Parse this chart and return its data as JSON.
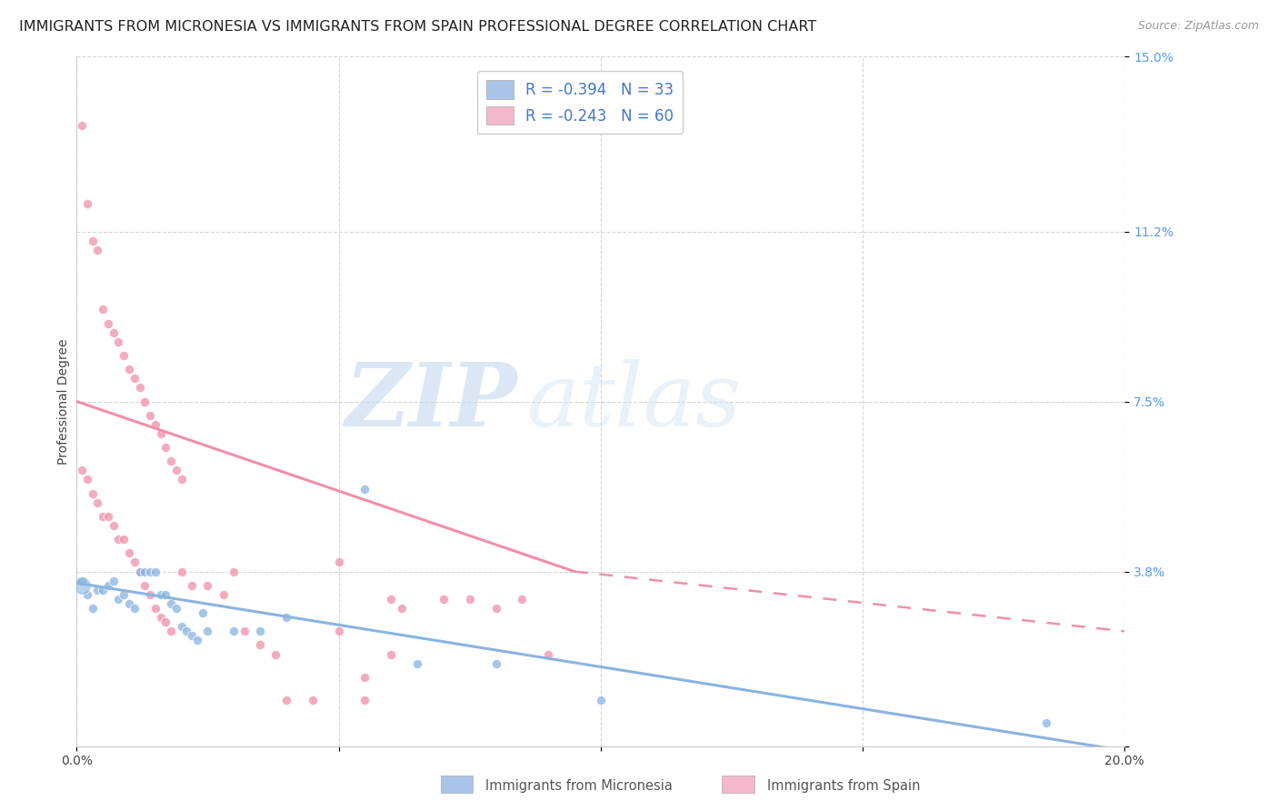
{
  "title": "IMMIGRANTS FROM MICRONESIA VS IMMIGRANTS FROM SPAIN PROFESSIONAL DEGREE CORRELATION CHART",
  "source": "Source: ZipAtlas.com",
  "ylabel": "Professional Degree",
  "watermark_zip": "ZIP",
  "watermark_atlas": "atlas",
  "legend_entries": [
    {
      "label": "R = -0.394   N = 33",
      "color": "#aac4e8"
    },
    {
      "label": "R = -0.243   N = 60",
      "color": "#f4b8cc"
    }
  ],
  "micronesia_color": "#8ab4e0",
  "spain_color": "#f090a8",
  "micronesia_scatter": [
    [
      0.001,
      0.036
    ],
    [
      0.002,
      0.033
    ],
    [
      0.003,
      0.03
    ],
    [
      0.004,
      0.034
    ],
    [
      0.005,
      0.034
    ],
    [
      0.006,
      0.035
    ],
    [
      0.007,
      0.036
    ],
    [
      0.008,
      0.032
    ],
    [
      0.009,
      0.033
    ],
    [
      0.01,
      0.031
    ],
    [
      0.011,
      0.03
    ],
    [
      0.012,
      0.038
    ],
    [
      0.013,
      0.038
    ],
    [
      0.014,
      0.038
    ],
    [
      0.015,
      0.038
    ],
    [
      0.016,
      0.033
    ],
    [
      0.017,
      0.033
    ],
    [
      0.018,
      0.031
    ],
    [
      0.019,
      0.03
    ],
    [
      0.02,
      0.026
    ],
    [
      0.021,
      0.025
    ],
    [
      0.022,
      0.024
    ],
    [
      0.023,
      0.023
    ],
    [
      0.024,
      0.029
    ],
    [
      0.025,
      0.025
    ],
    [
      0.03,
      0.025
    ],
    [
      0.035,
      0.025
    ],
    [
      0.04,
      0.028
    ],
    [
      0.055,
      0.056
    ],
    [
      0.065,
      0.018
    ],
    [
      0.08,
      0.018
    ],
    [
      0.1,
      0.01
    ],
    [
      0.185,
      0.005
    ]
  ],
  "spain_scatter": [
    [
      0.001,
      0.135
    ],
    [
      0.002,
      0.118
    ],
    [
      0.003,
      0.11
    ],
    [
      0.004,
      0.108
    ],
    [
      0.005,
      0.095
    ],
    [
      0.006,
      0.092
    ],
    [
      0.007,
      0.09
    ],
    [
      0.008,
      0.088
    ],
    [
      0.009,
      0.085
    ],
    [
      0.01,
      0.082
    ],
    [
      0.011,
      0.08
    ],
    [
      0.012,
      0.078
    ],
    [
      0.013,
      0.075
    ],
    [
      0.014,
      0.072
    ],
    [
      0.015,
      0.07
    ],
    [
      0.016,
      0.068
    ],
    [
      0.017,
      0.065
    ],
    [
      0.018,
      0.062
    ],
    [
      0.019,
      0.06
    ],
    [
      0.02,
      0.058
    ],
    [
      0.001,
      0.06
    ],
    [
      0.002,
      0.058
    ],
    [
      0.003,
      0.055
    ],
    [
      0.004,
      0.053
    ],
    [
      0.005,
      0.05
    ],
    [
      0.006,
      0.05
    ],
    [
      0.007,
      0.048
    ],
    [
      0.008,
      0.045
    ],
    [
      0.009,
      0.045
    ],
    [
      0.01,
      0.042
    ],
    [
      0.011,
      0.04
    ],
    [
      0.012,
      0.038
    ],
    [
      0.013,
      0.035
    ],
    [
      0.014,
      0.033
    ],
    [
      0.015,
      0.03
    ],
    [
      0.016,
      0.028
    ],
    [
      0.017,
      0.027
    ],
    [
      0.018,
      0.025
    ],
    [
      0.02,
      0.038
    ],
    [
      0.022,
      0.035
    ],
    [
      0.025,
      0.035
    ],
    [
      0.028,
      0.033
    ],
    [
      0.03,
      0.038
    ],
    [
      0.032,
      0.025
    ],
    [
      0.035,
      0.022
    ],
    [
      0.038,
      0.02
    ],
    [
      0.04,
      0.01
    ],
    [
      0.045,
      0.01
    ],
    [
      0.05,
      0.04
    ],
    [
      0.055,
      0.01
    ],
    [
      0.06,
      0.032
    ],
    [
      0.062,
      0.03
    ],
    [
      0.07,
      0.032
    ],
    [
      0.08,
      0.03
    ],
    [
      0.085,
      0.032
    ],
    [
      0.09,
      0.02
    ],
    [
      0.05,
      0.025
    ],
    [
      0.06,
      0.02
    ],
    [
      0.055,
      0.015
    ],
    [
      0.075,
      0.032
    ]
  ],
  "micronesia_line": {
    "x0": 0.0,
    "x1": 0.2,
    "y0": 0.0355,
    "y1": -0.001
  },
  "spain_line_solid": {
    "x0": 0.0,
    "x1": 0.095,
    "y0": 0.075,
    "y1": 0.038
  },
  "spain_line_dashed": {
    "x0": 0.095,
    "x1": 0.2,
    "y0": 0.038,
    "y1": 0.025
  },
  "xlim": [
    0.0,
    0.2
  ],
  "ylim": [
    0.0,
    0.15
  ],
  "yticks": [
    0.0,
    0.038,
    0.075,
    0.112,
    0.15
  ],
  "ytick_labels": [
    "",
    "3.8%",
    "7.5%",
    "11.2%",
    "15.0%"
  ],
  "xticks": [
    0.0,
    0.05,
    0.1,
    0.15,
    0.2
  ],
  "xtick_labels": [
    "0.0%",
    "",
    "",
    "",
    "20.0%"
  ],
  "grid_color": "#cccccc",
  "background_color": "#ffffff",
  "title_fontsize": 11.5,
  "axis_label_fontsize": 10,
  "tick_fontsize": 10,
  "scatter_size": 55,
  "micronesia_large_size": 200
}
